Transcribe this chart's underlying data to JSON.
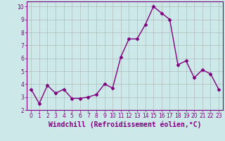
{
  "x": [
    0,
    1,
    2,
    3,
    4,
    5,
    6,
    7,
    8,
    9,
    10,
    11,
    12,
    13,
    14,
    15,
    16,
    17,
    18,
    19,
    20,
    21,
    22,
    23
  ],
  "y": [
    3.6,
    2.5,
    3.9,
    3.3,
    3.6,
    2.9,
    2.9,
    3.0,
    3.2,
    4.0,
    3.7,
    6.1,
    7.5,
    7.5,
    8.6,
    10.0,
    9.5,
    9.0,
    5.5,
    5.8,
    4.5,
    5.1,
    4.8,
    3.6
  ],
  "line_color": "#800080",
  "marker": "D",
  "marker_size": 2.5,
  "line_width": 1.0,
  "bg_color": "#cce8e8",
  "grid_color": "#aaaaaa",
  "xlabel": "Windchill (Refroidissement éolien,°C)",
  "xlim": [
    -0.5,
    23.5
  ],
  "ylim": [
    2,
    10.4
  ],
  "yticks": [
    2,
    3,
    4,
    5,
    6,
    7,
    8,
    9,
    10
  ],
  "xticks": [
    0,
    1,
    2,
    3,
    4,
    5,
    6,
    7,
    8,
    9,
    10,
    11,
    12,
    13,
    14,
    15,
    16,
    17,
    18,
    19,
    20,
    21,
    22,
    23
  ],
  "tick_label_size": 5.5,
  "xlabel_size": 7,
  "label_color": "#800080",
  "spine_color": "#800080"
}
